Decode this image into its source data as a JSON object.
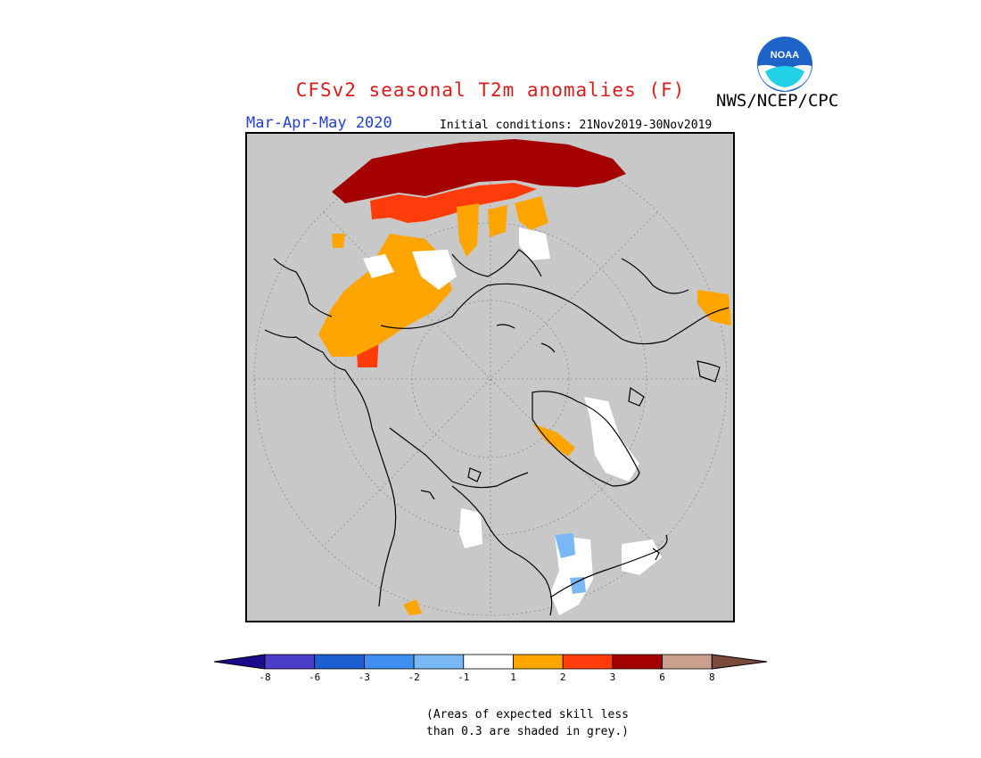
{
  "header": {
    "title": "CFSv2 seasonal T2m anomalies (F)",
    "agency": "NWS/NCEP/CPC",
    "period": "Mar-Apr-May 2020",
    "initial_conditions": "Initial conditions: 21Nov2019-30Nov2019",
    "logo_text": "NOAA"
  },
  "map": {
    "projection": "north-polar stereographic",
    "variable": "T2m anomaly",
    "units": "F",
    "grey_meaning": "skill less than 0.3"
  },
  "legend": {
    "labels": [
      "-8",
      "-6",
      "-3",
      "-2",
      "-1",
      "1",
      "2",
      "3",
      "6",
      "8"
    ],
    "colors": [
      "#1a0a8c",
      "#4a3dc8",
      "#1d5fd0",
      "#3f8ff0",
      "#7ab8f5",
      "#ffffff",
      "#ffa500",
      "#ff3c0a",
      "#a50000",
      "#c8a08c",
      "#7a4a3a"
    ],
    "note_line1": "(Areas of expected skill less",
    "note_line2": "than 0.3 are shaded in grey.)"
  },
  "colors": {
    "title": "#dd1a1a",
    "period": "#1f3fd6",
    "background_grey": "#c8c8c8"
  }
}
